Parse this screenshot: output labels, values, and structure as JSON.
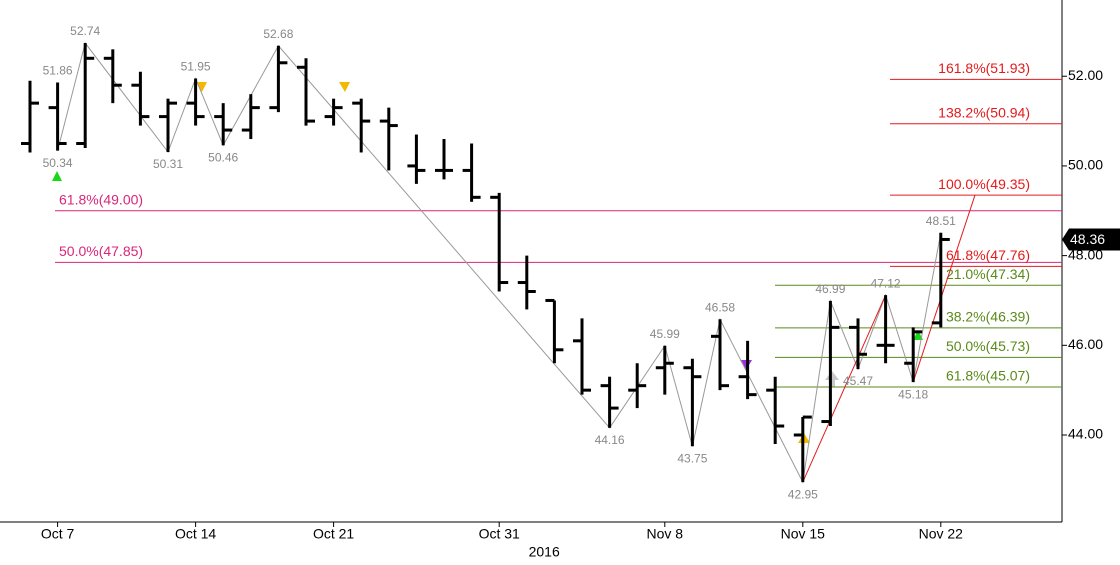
{
  "chart_data": {
    "type": "ohlc",
    "categories": [
      null,
      "Oct 7",
      null,
      null,
      null,
      null,
      "Oct 14",
      null,
      null,
      null,
      null,
      "Oct 21",
      null,
      null,
      null,
      null,
      null,
      "Oct 31",
      null,
      null,
      null,
      null,
      null,
      "Nov 8",
      null,
      null,
      null,
      null,
      "Nov 15",
      null,
      null,
      null,
      null,
      "Nov 22"
    ],
    "x_axis_year": "2016",
    "open": [
      50.5,
      51.3,
      50.5,
      52.4,
      51.8,
      51.1,
      51.4,
      51.1,
      50.8,
      51.3,
      52.2,
      51.1,
      51.4,
      51.0,
      50.0,
      49.9,
      49.9,
      49.3,
      47.4,
      47.0,
      46.1,
      45.1,
      45.0,
      45.5,
      45.5,
      46.2,
      45.3,
      45.0,
      44.0,
      44.3,
      46.4,
      46.0,
      45.6,
      46.5
    ],
    "high": [
      51.9,
      51.86,
      52.74,
      52.6,
      52.1,
      51.5,
      51.95,
      51.4,
      51.6,
      52.68,
      52.4,
      51.5,
      51.5,
      51.3,
      50.7,
      50.6,
      50.5,
      49.4,
      48.0,
      47.0,
      46.6,
      45.3,
      45.6,
      45.99,
      45.7,
      46.58,
      46.1,
      45.3,
      44.4,
      46.99,
      46.6,
      47.12,
      46.4,
      48.51
    ],
    "low": [
      50.3,
      50.34,
      50.4,
      51.4,
      50.9,
      50.31,
      50.9,
      50.46,
      50.6,
      51.2,
      50.9,
      50.9,
      50.3,
      49.9,
      49.6,
      49.7,
      49.2,
      47.2,
      46.8,
      45.6,
      44.9,
      44.16,
      44.6,
      44.9,
      43.75,
      45.0,
      44.8,
      43.8,
      42.95,
      44.2,
      45.47,
      45.6,
      45.18,
      46.4
    ],
    "close": [
      51.4,
      50.5,
      52.4,
      51.8,
      51.1,
      51.4,
      51.1,
      50.8,
      51.3,
      52.3,
      51.0,
      51.3,
      51.0,
      50.9,
      49.9,
      49.9,
      49.3,
      47.4,
      47.2,
      45.9,
      45.0,
      44.6,
      45.1,
      45.6,
      45.3,
      45.1,
      44.9,
      44.2,
      44.4,
      46.4,
      45.8,
      46.0,
      46.3,
      48.36
    ],
    "color": "#000000",
    "swings": [
      51.86,
      50.34,
      52.74,
      50.31,
      51.95,
      50.46,
      52.68,
      44.16,
      45.99,
      43.75,
      46.58,
      42.95,
      46.99,
      45.47,
      47.12,
      45.18,
      48.51
    ],
    "last_price": {
      "value": 48.36,
      "label": "48.36"
    },
    "ylim": [
      42.06,
      53.7
    ],
    "yticks": [
      {
        "value": 44,
        "label": "44.00"
      },
      {
        "value": 46,
        "label": "46.00"
      },
      {
        "value": 48,
        "label": "48.00"
      },
      {
        "value": 50,
        "label": "50.00"
      },
      {
        "value": 52,
        "label": "52.00"
      }
    ],
    "retracements_major": {
      "color": "#d9267a",
      "levels": [
        {
          "value": 49.0,
          "label": "61.8%(49.00)"
        },
        {
          "value": 47.85,
          "label": "50.0%(47.85)"
        }
      ]
    },
    "extensions": {
      "color": "#e31a1c",
      "levels": [
        {
          "value": 51.93,
          "label": "161.8%(51.93)"
        },
        {
          "value": 50.94,
          "label": "138.2%(50.94)"
        },
        {
          "value": 49.35,
          "label": "100.0%(49.35)"
        },
        {
          "value": 47.76,
          "label": "61.8%(47.76)"
        }
      ]
    },
    "retracements_minor": {
      "color": "#5a8a1a",
      "levels": [
        {
          "value": 47.34,
          "label": "21.0%(47.34)"
        },
        {
          "value": 46.39,
          "label": "38.2%(46.39)"
        },
        {
          "value": 45.73,
          "label": "50.0%(45.73)"
        },
        {
          "value": 45.07,
          "label": "61.8%(45.07)"
        }
      ]
    }
  }
}
